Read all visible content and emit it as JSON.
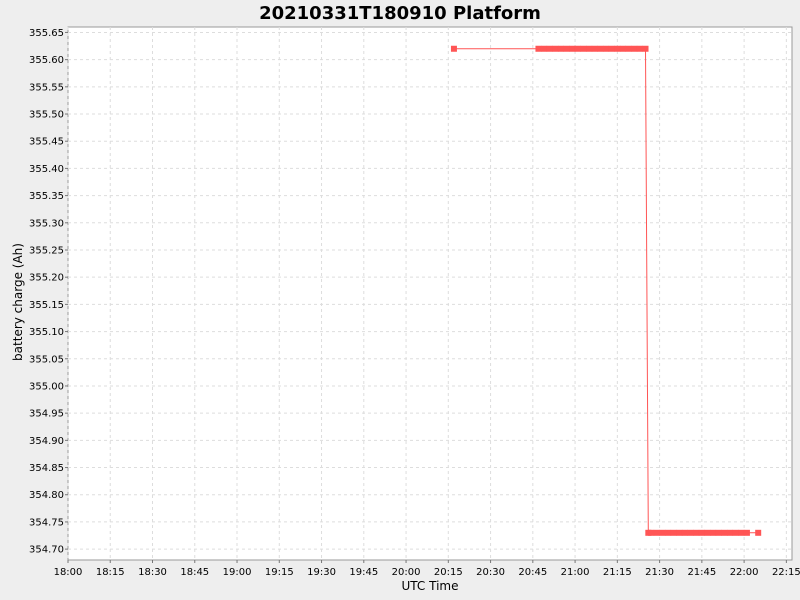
{
  "chart_data": {
    "type": "line",
    "title": "20210331T180910 Platform",
    "xlabel": "UTC Time",
    "ylabel": "battery charge (Ah)",
    "xlim": [
      "18:00",
      "22:17"
    ],
    "ylim": [
      354.68,
      355.66
    ],
    "x_ticks": [
      "18:00",
      "18:15",
      "18:30",
      "18:45",
      "19:00",
      "19:15",
      "19:30",
      "19:45",
      "20:00",
      "20:15",
      "20:30",
      "20:45",
      "21:00",
      "21:15",
      "21:30",
      "21:45",
      "22:00",
      "22:15"
    ],
    "y_ticks": [
      "354.70",
      "354.75",
      "354.80",
      "354.85",
      "354.90",
      "354.95",
      "355.00",
      "355.05",
      "355.10",
      "355.15",
      "355.20",
      "355.25",
      "355.30",
      "355.35",
      "355.40",
      "355.45",
      "355.50",
      "355.55",
      "355.60",
      "355.65"
    ],
    "grid": true,
    "legend": "none",
    "series_color": "#ff5555",
    "series": [
      {
        "x": [
          "20:17",
          "20:47",
          "20:49",
          "20:51",
          "20:53",
          "20:55",
          "20:57",
          "20:59",
          "21:01",
          "21:03",
          "21:05",
          "21:07",
          "21:09",
          "21:11",
          "21:13",
          "21:15",
          "21:17",
          "21:19",
          "21:21",
          "21:23",
          "21:25",
          "21:26",
          "21:27",
          "21:29",
          "21:31",
          "21:33",
          "21:35",
          "21:37",
          "21:39",
          "21:41",
          "21:43",
          "21:45",
          "21:47",
          "21:49",
          "21:51",
          "21:53",
          "21:55",
          "21:57",
          "21:59",
          "22:01",
          "22:05"
        ],
        "y": [
          355.62,
          355.62,
          355.62,
          355.62,
          355.62,
          355.62,
          355.62,
          355.62,
          355.62,
          355.62,
          355.62,
          355.62,
          355.62,
          355.62,
          355.62,
          355.62,
          355.62,
          355.62,
          355.62,
          355.62,
          355.62,
          354.73,
          354.73,
          354.73,
          354.73,
          354.73,
          354.73,
          354.73,
          354.73,
          354.73,
          354.73,
          354.73,
          354.73,
          354.73,
          354.73,
          354.73,
          354.73,
          354.73,
          354.73,
          354.73,
          354.73
        ]
      }
    ]
  }
}
